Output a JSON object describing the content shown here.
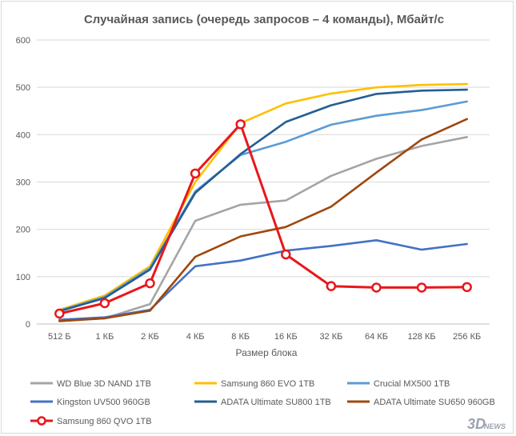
{
  "chart_data": {
    "type": "line",
    "title": "Случайная запись (очередь запросов – 4 команды), Мбайт/с",
    "xlabel": "Размер блока",
    "ylabel": "",
    "ylim": [
      0,
      600
    ],
    "yticks": [
      0,
      100,
      200,
      300,
      400,
      500,
      600
    ],
    "grid": true,
    "legend_position": "bottom",
    "categories": [
      "512 Б",
      "1 КБ",
      "2 КБ",
      "4 КБ",
      "8 КБ",
      "16 КБ",
      "32 КБ",
      "64 КБ",
      "128 КБ",
      "256 КБ"
    ],
    "series": [
      {
        "name": "WD Blue 3D NAND 1TB",
        "color": "#a5a5a5",
        "marker": false,
        "values": [
          8,
          12,
          42,
          218,
          252,
          261,
          313,
          349,
          376,
          395
        ]
      },
      {
        "name": "Samsung 860 EVO 1TB",
        "color": "#ffc000",
        "marker": false,
        "values": [
          30,
          60,
          122,
          300,
          424,
          466,
          487,
          500,
          505,
          507
        ]
      },
      {
        "name": "Crucial MX500 1TB",
        "color": "#5b9bd5",
        "marker": false,
        "values": [
          28,
          57,
          118,
          280,
          357,
          385,
          421,
          440,
          452,
          470
        ]
      },
      {
        "name": "Kingston UV500 960GB",
        "color": "#4472c4",
        "marker": false,
        "values": [
          9,
          14,
          30,
          122,
          134,
          155,
          165,
          177,
          157,
          169
        ]
      },
      {
        "name": "ADATA Ultimate SU800 1TB",
        "color": "#255e91",
        "marker": false,
        "values": [
          27,
          55,
          115,
          277,
          359,
          427,
          462,
          486,
          493,
          495
        ]
      },
      {
        "name": "ADATA Ultimate SU650 960GB",
        "color": "#9e480e",
        "marker": false,
        "values": [
          6,
          12,
          28,
          142,
          185,
          205,
          248,
          320,
          390,
          433
        ]
      },
      {
        "name": "Samsung 860 QVO 1TB",
        "color": "#e8171b",
        "marker": true,
        "values": [
          22,
          44,
          86,
          318,
          422,
          147,
          80,
          77,
          77,
          78
        ]
      }
    ]
  },
  "watermark": {
    "main": "3D",
    "suffix": "NEWS",
    "sub": "Daily Digital Digest"
  }
}
